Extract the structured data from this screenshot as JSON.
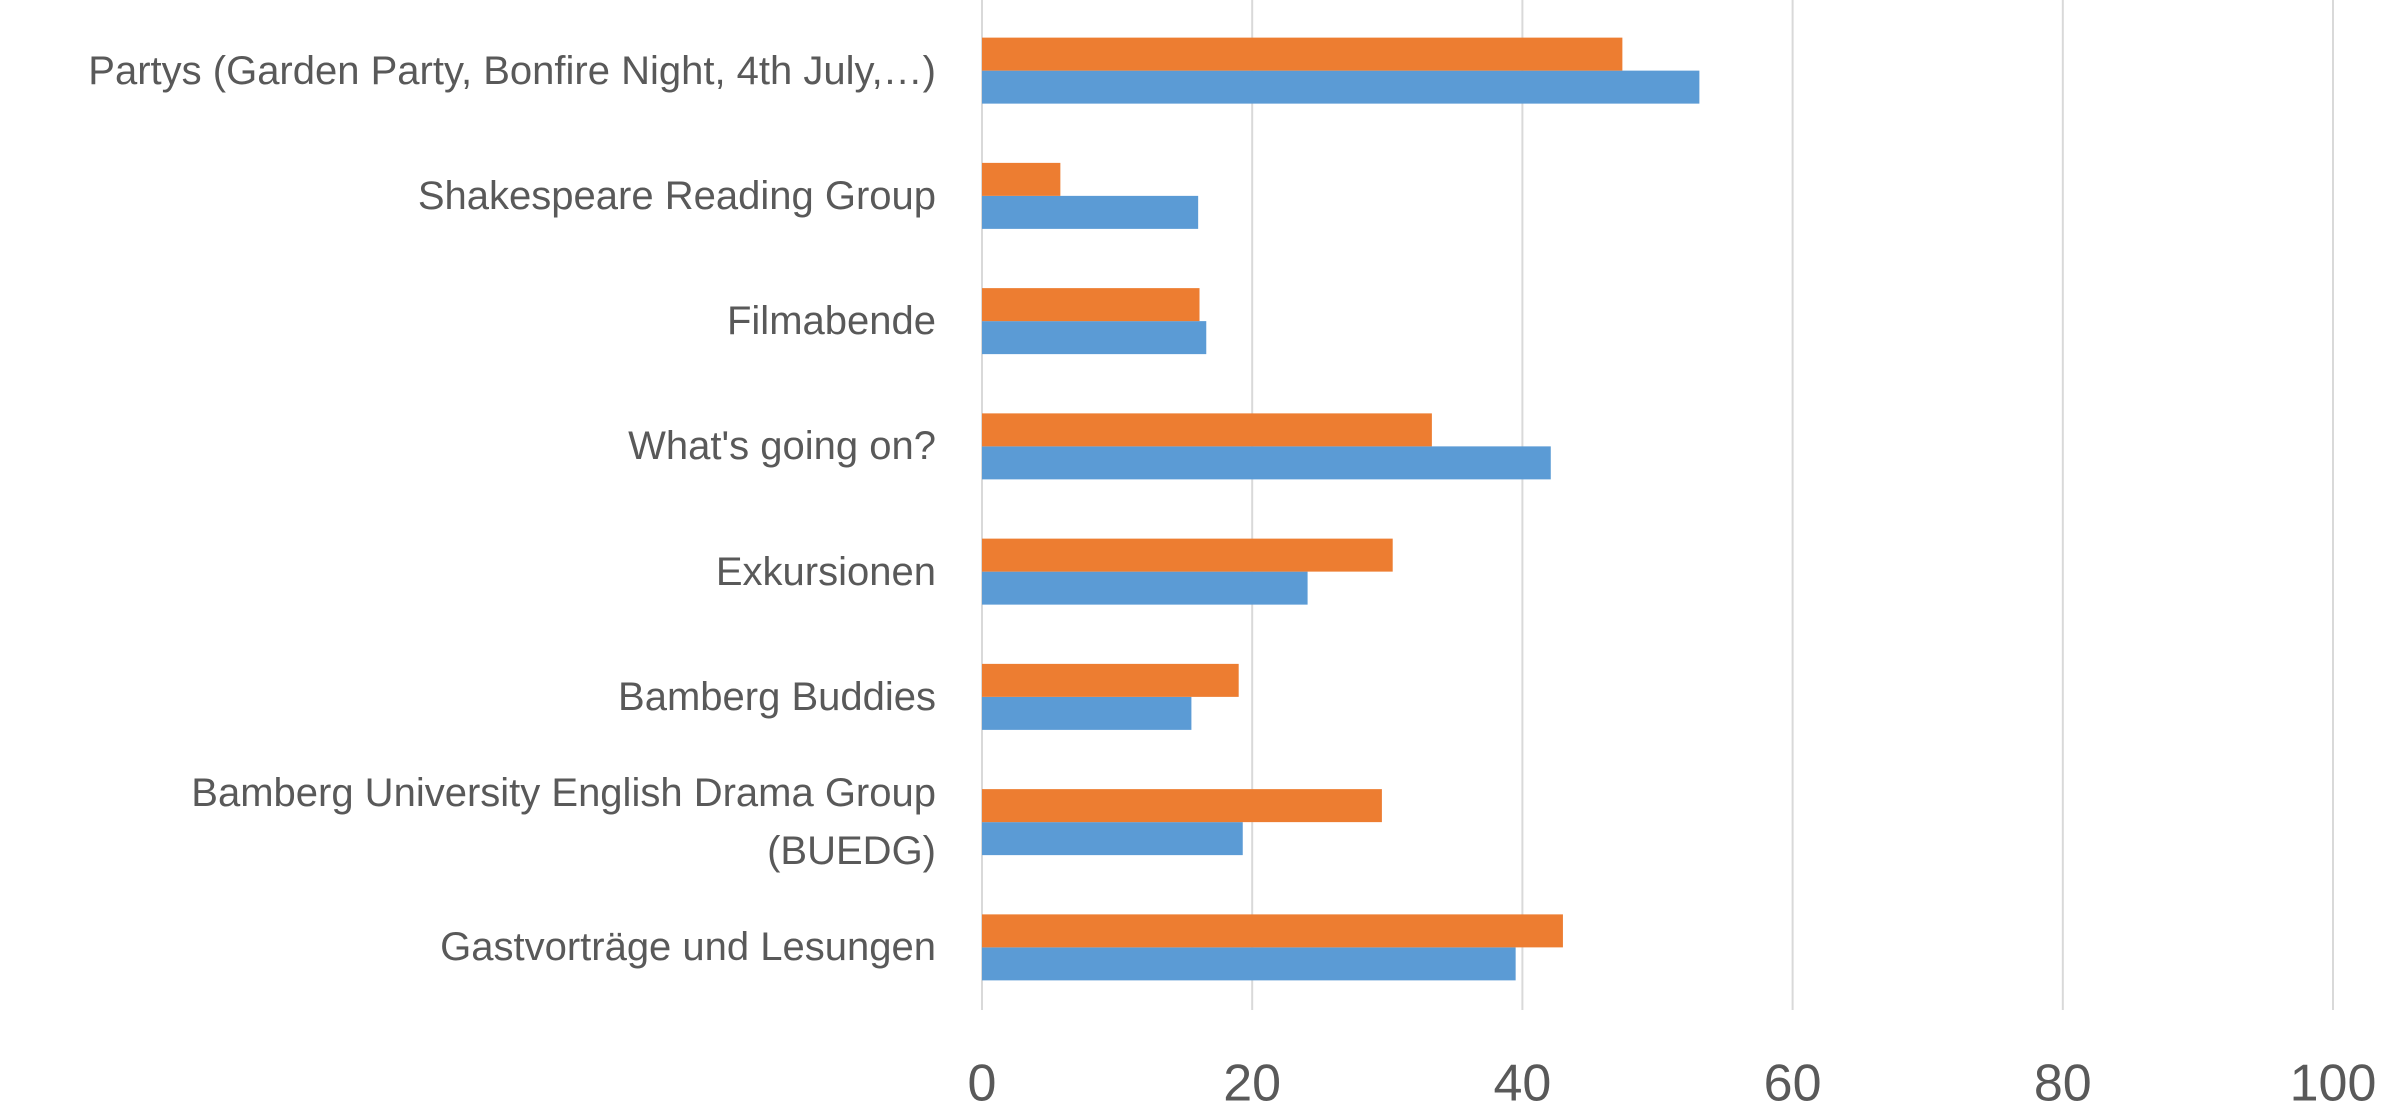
{
  "chart_data": {
    "type": "bar",
    "orientation": "horizontal",
    "categories": [
      "Partys (Garden Party, Bonfire Night, 4th July,…)",
      "Shakespeare Reading Group",
      "Filmabende",
      "What's going on?",
      "Exkursionen",
      "Bamberg Buddies",
      "Bamberg University English Drama Group\n(BUEDG)",
      "Gastvorträge und Lesungen"
    ],
    "series": [
      {
        "color": "#5b9bd5",
        "values": [
          53.1,
          16.0,
          16.6,
          42.1,
          24.1,
          15.5,
          19.3,
          39.5
        ]
      },
      {
        "color": "#ed7d31",
        "values": [
          47.4,
          5.8,
          16.1,
          33.3,
          30.4,
          19.0,
          29.6,
          43.0
        ]
      }
    ],
    "xlim": [
      0,
      100
    ],
    "xticks": [
      0,
      20,
      40,
      60,
      80,
      100
    ],
    "grid": true
  }
}
